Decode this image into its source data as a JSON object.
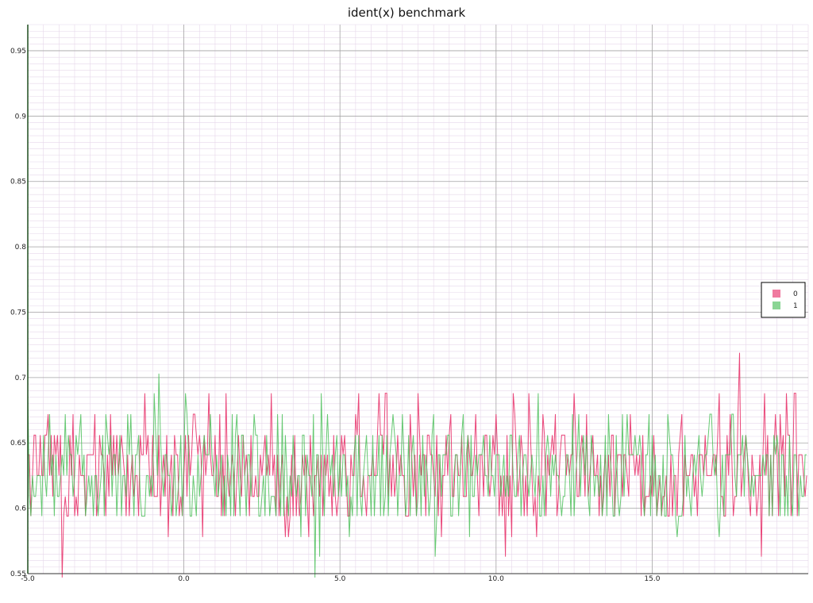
{
  "chart_data": {
    "type": "line",
    "title": "ident(x) benchmark",
    "xlabel": "",
    "ylabel": "",
    "xlim": [
      -5.0,
      20.0
    ],
    "ylim": [
      0.55,
      0.97
    ],
    "x_ticks": [
      "-5.0",
      "0.0",
      "5.0",
      "10.0",
      "15.0"
    ],
    "x_tick_values": [
      -5,
      0,
      5,
      10,
      15
    ],
    "y_ticks": [
      "0.55",
      "0.6",
      "0.65",
      "0.7",
      "0.75",
      "0.8",
      "0.85",
      "0.9",
      "0.95"
    ],
    "y_tick_values": [
      0.55,
      0.6,
      0.65,
      0.7,
      0.75,
      0.8,
      0.85,
      0.9,
      0.95
    ],
    "grid": true,
    "legend_position": "right",
    "sampling": {
      "x_start": -5.0,
      "x_end": 19.95,
      "step": 0.05
    },
    "value_levels": [
      0.547,
      0.563,
      0.578,
      0.594,
      0.609,
      0.625,
      0.641,
      0.656,
      0.672,
      0.688,
      0.703,
      0.719
    ],
    "series": [
      {
        "name": "0",
        "color": "#e8336b",
        "typical_range": [
          0.594,
          0.656
        ],
        "peak": {
          "x": 17.8,
          "y": 0.719
        },
        "trough": {
          "x": -3.9,
          "y": 0.547
        }
      },
      {
        "name": "1",
        "color": "#4cbf5a",
        "typical_range": [
          0.594,
          0.656
        ],
        "peak": {
          "x": -0.8,
          "y": 0.703
        },
        "trough": {
          "x": 4.2,
          "y": 0.547
        }
      }
    ]
  }
}
